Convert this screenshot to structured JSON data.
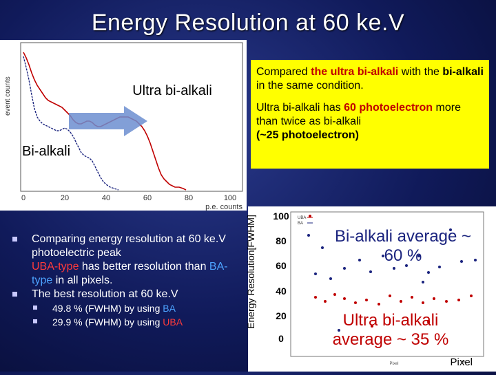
{
  "title": "Energy Resolution at 60 ke.V",
  "spectrum": {
    "ylabel": "event counts",
    "xlabel": "p.e. counts",
    "x_ticks": [
      "0",
      "20",
      "40",
      "60",
      "80",
      "100"
    ],
    "label_uba": "Ultra bi-alkali",
    "label_ba": "Bi-alkali"
  },
  "callout": {
    "p1_a": "Compared ",
    "p1_b": "the ultra bi-alkali",
    "p1_c": " with the ",
    "p1_d": "bi-alkali",
    "p1_e": " in the same condition.",
    "p2_a": "Ultra bi-alkali has ",
    "p2_b": "60 photoelectron",
    "p2_c": " more than twice as bi-alkali",
    "p2_d": "(~25 photoelectron)"
  },
  "bullets": {
    "b1_a": "Comparing energy resolution at 60 ke.V photoelectric peak",
    "b1_b": "UBA-type",
    "b1_c": " has better resolution than ",
    "b1_d": "BA-type",
    "b1_e": " in all pixels.",
    "b2": "The best resolution at 60 ke.V",
    "s1_a": "49.8 % (FWHM) by using ",
    "s1_b": "BA",
    "s2_a": "29.9 % (FWHM) by using ",
    "s2_b": "UBA"
  },
  "resolution_plot": {
    "ylabel": "Energy Resolution[FWHM]",
    "y_ticks": [
      "100",
      "80",
      "60",
      "40",
      "20",
      "0"
    ],
    "xlabel": "Pixel",
    "legend_uba": "UBA",
    "legend_ba": "BA",
    "ann_ba": "Bi-alkali average ~ 60 %",
    "ann_uba": "Ultra bi-alkali average ~ 35 %"
  },
  "colors": {
    "uba": "#c00000",
    "ba": "#1a237e",
    "callout_bg": "#ffff00"
  }
}
